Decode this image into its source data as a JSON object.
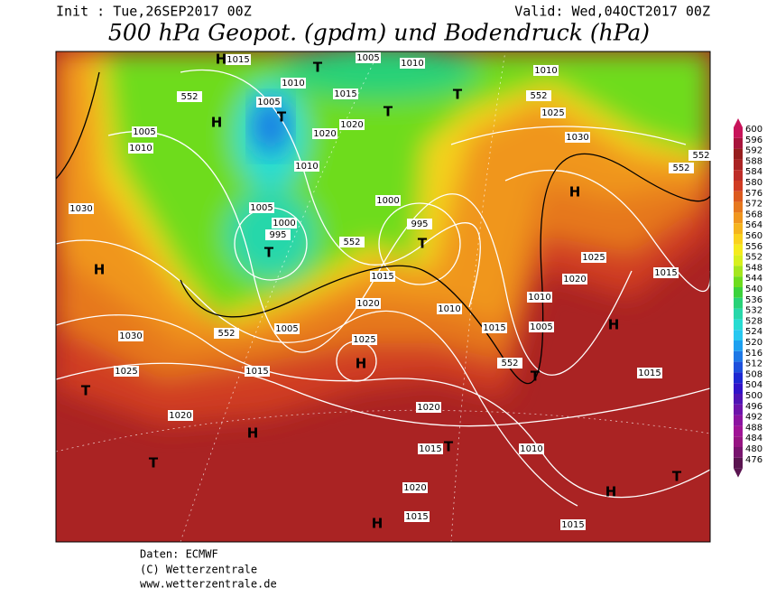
{
  "header": {
    "init": "Init : Tue,26SEP2017 00Z",
    "valid": "Valid: Wed,04OCT2017 00Z",
    "title": "500 hPa Geopot. (gpdm) und Bodendruck (hPa)"
  },
  "legend": {
    "levels": [
      "600",
      "596",
      "592",
      "588",
      "584",
      "580",
      "576",
      "572",
      "568",
      "564",
      "560",
      "556",
      "552",
      "548",
      "544",
      "540",
      "536",
      "532",
      "528",
      "524",
      "520",
      "516",
      "512",
      "508",
      "504",
      "500",
      "496",
      "492",
      "488",
      "484",
      "480",
      "476"
    ],
    "colors": [
      "#c8145a",
      "#a8143c",
      "#961e1e",
      "#aa2323",
      "#be2d28",
      "#d03c23",
      "#dc5a1e",
      "#e6781e",
      "#f0961e",
      "#f5b41e",
      "#fad21e",
      "#f5eb1e",
      "#d7f01e",
      "#a5e61e",
      "#6edc1e",
      "#3cd23c",
      "#28d278",
      "#28d7aa",
      "#28dcd2",
      "#28c8f0",
      "#1ea0f0",
      "#1e78e6",
      "#1e50dc",
      "#1e28d2",
      "#3214c8",
      "#5014b4",
      "#6e14aa",
      "#8c14a0",
      "#a01496",
      "#961482",
      "#78146e",
      "#5a1450"
    ]
  },
  "map_labels": [
    "1015",
    "1005",
    "1010",
    "1010",
    "1010",
    "1020",
    "1005",
    "1025",
    "1030",
    "1005",
    "1010",
    "1015",
    "1020",
    "1010",
    "1005",
    "1000",
    "995",
    "1000",
    "995",
    "1030",
    "1025",
    "1020",
    "1015",
    "1015",
    "1010",
    "1005",
    "1020",
    "1025",
    "1030",
    "1025",
    "1020",
    "1015",
    "1020",
    "1015",
    "1010",
    "1015",
    "1020",
    "1015",
    "1015",
    "1010",
    "1005",
    "1015",
    "552",
    "552",
    "552",
    "552",
    "552",
    "552",
    "552",
    "H",
    "T",
    "T",
    "T",
    "T",
    "T",
    "H",
    "H",
    "H",
    "T",
    "H",
    "H",
    "T",
    "T",
    "T",
    "H",
    "H",
    "T",
    "T",
    "H"
  ],
  "footer": {
    "source": "Daten: ECMWF",
    "copyright": "(C) Wetterzentrale",
    "url": "www.wetterzentrale.de"
  }
}
